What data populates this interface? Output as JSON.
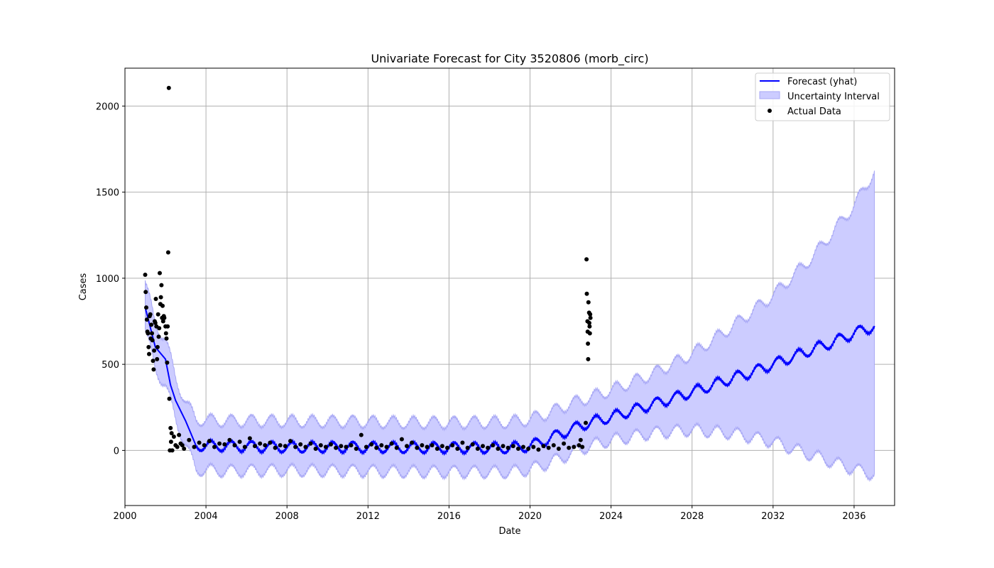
{
  "chart_data": {
    "type": "line",
    "title": "Univariate Forecast for City 3520806 (morb_circ)",
    "xlabel": "Date",
    "ylabel": "Cases",
    "x_range": [
      "2000-01-01",
      "2038-01-01"
    ],
    "ylim": [
      -320,
      2220
    ],
    "x_ticks": [
      2000,
      2004,
      2008,
      2012,
      2016,
      2020,
      2024,
      2028,
      2032,
      2036
    ],
    "x_tick_labels": [
      "2000",
      "2004",
      "2008",
      "2012",
      "2016",
      "2020",
      "2024",
      "2028",
      "2032",
      "2036"
    ],
    "y_ticks": [
      0,
      500,
      1000,
      1500,
      2000
    ],
    "y_tick_labels": [
      "0",
      "500",
      "1000",
      "1500",
      "2000"
    ],
    "grid": true,
    "legend": {
      "position": "top-right",
      "items": [
        "Forecast (yhat)",
        "Uncertainty Interval",
        "Actual Data"
      ]
    },
    "colors": {
      "forecast": "#0000ff",
      "interval_fill": "#ccccff",
      "interval_edge": "#a8a8f5",
      "actual": "#000000",
      "grid": "#b0b0b0"
    },
    "series": [
      {
        "name": "Forecast (yhat)",
        "x": [
          "2001-01",
          "2001-07",
          "2002-01",
          "2002-04",
          "2002-07",
          "2003-01",
          "2003-07",
          "2005-01",
          "2007-01",
          "2009-01",
          "2011-01",
          "2013-01",
          "2015-01",
          "2017-01",
          "2019-01",
          "2020-01",
          "2021-01",
          "2022-01",
          "2023-01",
          "2024-01",
          "2025-01",
          "2026-01",
          "2027-01",
          "2028-01",
          "2029-01",
          "2030-01",
          "2031-01",
          "2032-01",
          "2033-01",
          "2034-01",
          "2035-01",
          "2036-01",
          "2037-01"
        ],
        "values": [
          830,
          600,
          530,
          380,
          290,
          170,
          30,
          25,
          20,
          20,
          18,
          18,
          16,
          15,
          16,
          25,
          70,
          120,
          165,
          195,
          230,
          265,
          300,
          340,
          380,
          420,
          455,
          500,
          545,
          590,
          630,
          680,
          720
        ],
        "seasonal_amplitude": 30
      },
      {
        "name": "Uncertainty Interval",
        "x": [
          "2001-01",
          "2001-07",
          "2002-01",
          "2002-07",
          "2003-01",
          "2003-07",
          "2005-01",
          "2008-01",
          "2012-01",
          "2016-01",
          "2019-01",
          "2020-01",
          "2021-01",
          "2022-01",
          "2023-01",
          "2024-01",
          "2026-01",
          "2028-01",
          "2030-01",
          "2032-01",
          "2034-01",
          "2036-01",
          "2037-01"
        ],
        "lower": [
          700,
          470,
          380,
          180,
          30,
          -110,
          -120,
          -115,
          -120,
          -125,
          -125,
          -110,
          -70,
          -20,
          30,
          60,
          100,
          120,
          100,
          50,
          -30,
          -110,
          -140
        ],
        "upper": [
          980,
          730,
          650,
          420,
          280,
          180,
          170,
          170,
          165,
          160,
          165,
          180,
          220,
          270,
          310,
          350,
          440,
          560,
          720,
          900,
          1130,
          1420,
          1620
        ],
        "seasonal_amplitude": 35
      },
      {
        "name": "Actual Data",
        "points": [
          [
            "2001-01-01",
            1020
          ],
          [
            "2001-01-10",
            920
          ],
          [
            "2001-01-20",
            830
          ],
          [
            "2001-02-01",
            760
          ],
          [
            "2001-02-10",
            690
          ],
          [
            "2001-02-20",
            680
          ],
          [
            "2001-03-01",
            600
          ],
          [
            "2001-03-10",
            560
          ],
          [
            "2001-03-20",
            780
          ],
          [
            "2001-04-01",
            790
          ],
          [
            "2001-04-10",
            650
          ],
          [
            "2001-04-20",
            730
          ],
          [
            "2001-05-01",
            680
          ],
          [
            "2001-05-10",
            640
          ],
          [
            "2001-05-20",
            520
          ],
          [
            "2001-06-01",
            470
          ],
          [
            "2001-06-10",
            580
          ],
          [
            "2001-06-20",
            750
          ],
          [
            "2001-07-01",
            740
          ],
          [
            "2001-07-10",
            880
          ],
          [
            "2001-07-20",
            720
          ],
          [
            "2001-08-01",
            530
          ],
          [
            "2001-08-10",
            600
          ],
          [
            "2001-08-20",
            790
          ],
          [
            "2001-09-01",
            660
          ],
          [
            "2001-09-10",
            710
          ],
          [
            "2001-09-20",
            1030
          ],
          [
            "2001-10-01",
            850
          ],
          [
            "2001-10-10",
            890
          ],
          [
            "2001-10-20",
            960
          ],
          [
            "2001-11-01",
            770
          ],
          [
            "2001-11-10",
            840
          ],
          [
            "2001-11-20",
            750
          ],
          [
            "2001-12-01",
            780
          ],
          [
            "2001-12-10",
            770
          ],
          [
            "2002-01-01",
            720
          ],
          [
            "2002-01-10",
            680
          ],
          [
            "2002-01-20",
            650
          ],
          [
            "2002-02-01",
            510
          ],
          [
            "2002-02-10",
            720
          ],
          [
            "2002-02-20",
            1150
          ],
          [
            "2002-03-01",
            2105
          ],
          [
            "2002-03-10",
            300
          ],
          [
            "2002-03-20",
            0
          ],
          [
            "2002-04-01",
            130
          ],
          [
            "2002-04-10",
            50
          ],
          [
            "2002-04-20",
            100
          ],
          [
            "2002-05-01",
            0
          ],
          [
            "2002-06-01",
            80
          ],
          [
            "2002-07-01",
            30
          ],
          [
            "2002-08-01",
            20
          ],
          [
            "2002-09-01",
            90
          ],
          [
            "2002-10-01",
            40
          ],
          [
            "2002-11-01",
            30
          ],
          [
            "2002-12-01",
            10
          ],
          [
            "2003-03-01",
            60
          ],
          [
            "2003-06-01",
            20
          ],
          [
            "2003-09-01",
            45
          ],
          [
            "2003-12-01",
            30
          ],
          [
            "2004-03-01",
            55
          ],
          [
            "2004-06-01",
            20
          ],
          [
            "2004-09-01",
            40
          ],
          [
            "2004-12-01",
            35
          ],
          [
            "2005-03-01",
            60
          ],
          [
            "2005-06-01",
            30
          ],
          [
            "2005-09-01",
            50
          ],
          [
            "2005-12-01",
            20
          ],
          [
            "2006-03-01",
            70
          ],
          [
            "2006-06-01",
            25
          ],
          [
            "2006-09-01",
            40
          ],
          [
            "2006-12-01",
            30
          ],
          [
            "2007-03-01",
            45
          ],
          [
            "2007-06-01",
            15
          ],
          [
            "2007-09-01",
            30
          ],
          [
            "2007-12-01",
            25
          ],
          [
            "2008-03-01",
            55
          ],
          [
            "2008-06-01",
            20
          ],
          [
            "2008-09-01",
            35
          ],
          [
            "2008-12-01",
            20
          ],
          [
            "2009-03-01",
            40
          ],
          [
            "2009-06-01",
            10
          ],
          [
            "2009-09-01",
            30
          ],
          [
            "2009-12-01",
            20
          ],
          [
            "2010-03-01",
            35
          ],
          [
            "2010-06-01",
            15
          ],
          [
            "2010-09-01",
            25
          ],
          [
            "2010-12-01",
            20
          ],
          [
            "2011-03-01",
            30
          ],
          [
            "2011-06-01",
            10
          ],
          [
            "2011-09-01",
            90
          ],
          [
            "2011-12-01",
            20
          ],
          [
            "2012-03-01",
            35
          ],
          [
            "2012-06-01",
            15
          ],
          [
            "2012-09-01",
            30
          ],
          [
            "2012-12-01",
            20
          ],
          [
            "2013-03-01",
            40
          ],
          [
            "2013-06-01",
            15
          ],
          [
            "2013-09-01",
            65
          ],
          [
            "2013-12-01",
            25
          ],
          [
            "2014-03-01",
            45
          ],
          [
            "2014-06-01",
            15
          ],
          [
            "2014-09-01",
            30
          ],
          [
            "2014-12-01",
            20
          ],
          [
            "2015-03-01",
            30
          ],
          [
            "2015-06-01",
            10
          ],
          [
            "2015-09-01",
            25
          ],
          [
            "2015-12-01",
            15
          ],
          [
            "2016-03-01",
            30
          ],
          [
            "2016-06-01",
            10
          ],
          [
            "2016-09-01",
            45
          ],
          [
            "2016-12-01",
            15
          ],
          [
            "2017-03-01",
            35
          ],
          [
            "2017-06-01",
            10
          ],
          [
            "2017-09-01",
            25
          ],
          [
            "2017-12-01",
            15
          ],
          [
            "2018-03-01",
            30
          ],
          [
            "2018-06-01",
            10
          ],
          [
            "2018-09-01",
            25
          ],
          [
            "2018-12-01",
            15
          ],
          [
            "2019-03-01",
            25
          ],
          [
            "2019-06-01",
            10
          ],
          [
            "2019-09-01",
            20
          ],
          [
            "2019-12-01",
            10
          ],
          [
            "2020-03-01",
            20
          ],
          [
            "2020-06-01",
            5
          ],
          [
            "2020-09-01",
            25
          ],
          [
            "2020-12-01",
            15
          ],
          [
            "2021-03-01",
            30
          ],
          [
            "2021-06-01",
            10
          ],
          [
            "2021-09-01",
            40
          ],
          [
            "2021-12-01",
            15
          ],
          [
            "2022-03-01",
            20
          ],
          [
            "2022-06-01",
            30
          ],
          [
            "2022-07-01",
            60
          ],
          [
            "2022-08-01",
            20
          ],
          [
            "2022-10-01",
            160
          ],
          [
            "2022-10-15",
            1110
          ],
          [
            "2022-10-20",
            910
          ],
          [
            "2022-11-01",
            750
          ],
          [
            "2022-11-05",
            690
          ],
          [
            "2022-11-10",
            620
          ],
          [
            "2022-11-15",
            530
          ],
          [
            "2022-11-20",
            860
          ],
          [
            "2022-12-01",
            800
          ],
          [
            "2022-12-05",
            740
          ],
          [
            "2022-12-10",
            720
          ],
          [
            "2022-12-15",
            680
          ],
          [
            "2022-12-20",
            790
          ],
          [
            "2022-12-25",
            770
          ]
        ]
      }
    ]
  }
}
